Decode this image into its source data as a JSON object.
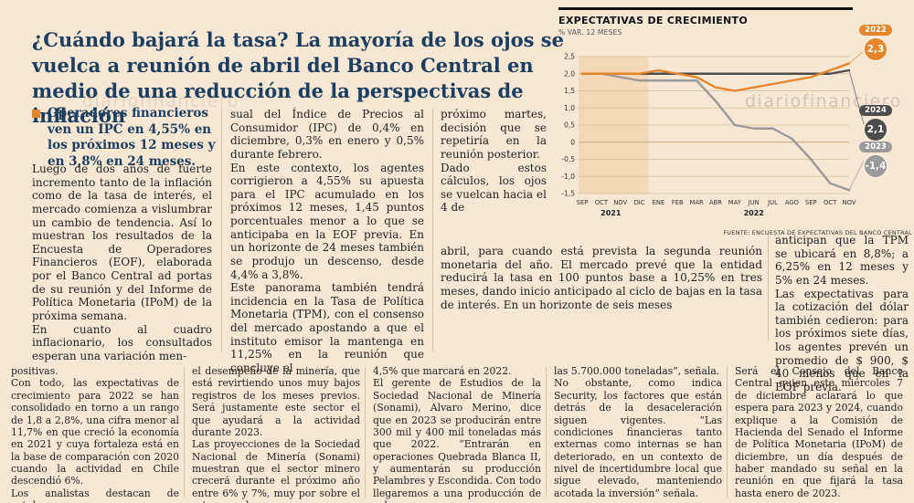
{
  "colors": {
    "background": "#f8e7d3",
    "accent_orange": "#e6862c",
    "headline_navy": "#1c3e60",
    "series_2022": "#e6862c",
    "series_2024": "#4d4d4d",
    "series_2023": "#9a9a9a"
  },
  "watermark": "diariofinanciero",
  "article": {
    "headline": "¿Cuándo bajará la tasa? La mayoría de los ojos se vuelca a reunión de abril del Banco Central en medio de una reducción de la perspectivas de inflación",
    "lead": "Operadores financieros ven un IPC en 4,55% en los próximos 12 meses y en 3,8% en 24 meses.",
    "col1": "Luego de dos años de fuerte incremento tanto de la inflación como de la tasa de interés, el mercado comienza a vislumbrar un cambio de tendencia. Así lo muestran los resultados de la Encuesta de Operadores Financieros (EOF), elaborada por el Banco Central ad portas de su reunión y del Informe de Política Monetaria (IPoM) de la próxima semana.\nEn cuanto al cuadro inflacionario, los consultados esperan una variación men-",
    "col2": "sual del Índice de Precios al Consumidor (IPC) de 0,4% en diciembre, 0,3% en enero y 0,5% durante febrero.\nEn este contexto, los agentes corrigieron a 4,55% su apuesta para el IPC acumulado en los próximos 12 meses, 1,45 puntos porcentuales menor a lo que se anticipaba en la EOF previa. En un horizonte de 24 meses también se produjo un descenso, desde 4,4% a 3,8%.\nEste panorama también tendrá incidencia en la Tasa de Política Monetaria (TPM), con el consenso del mercado apostando a que el instituto emisor la mantenga en 11,25% en la reunión que concluye el",
    "col3": "próximo martes, decisión que se repetiría en la reunión posterior.\nDado estos cálculos, los ojos se vuelcan hacia el 4 de",
    "col3_wide": "abril, para cuando está prevista la segunda reunión monetaria del año. El mercado prevé que la entidad reducirá la tasa en 100 puntos base a 10,25% en tres meses, dando inicio anticipado al ciclo de bajas en la tasa de interés. En un horizonte de seis meses",
    "col4": "anticipan que la TPM se ubicará en 8,8%; a 6,25% en 12 meses y 5% en 24 meses.\nLas expectativas para la cotización del dólar también cedieron: para los próximos siete días, los agentes prevén un promedio de $ 900, $ 40 menos que en la EOF previa.",
    "bottom1": "positivas.\nCon todo, las expectativas de crecimiento para 2022 se han consolidado en torno a un rango de 1,8 a 2,8%, una cifra menor al 11,7% en que creció la economía en 2021 y cuya fortaleza está en la base de comparación con 2020 cuando la actividad en Chile descendió 6%.\nLos analistas destacan de octubre",
    "bottom2": "el desempeño de la minería, que está revirtiendo unos muy bajos registros de los meses previos. Será justamente este sector el que ayudará a la actividad durante 2023.\nLas proyecciones de la Sociedad Nacional de Minería (Sonami) muestran que el sector minero crecerá durante el próximo año entre 6% y 7%, muy por sobre el retroceso de",
    "bottom3": "4,5% que marcará en 2022.\nEl gerente de Estudios de la Sociedad Nacional de Minería (Sonami), Alvaro Merino, dice que en 2023 se producirán entre 300 mil y 400 mil toneladas más que 2022. “Entrarán en operaciones Quebrada Blanca II, y aumentarán su producción Pelambres y Escondida. Con todo llegaremos a una producción de cobre cercana a",
    "bottom4": "las 5.700.000 toneladas”, señala.\nNo obstante, como indica Security, los factores que están detrás de la desaceleración siguen vigentes. “Las condiciones financieras tanto externas como internas se han deteriorado, en un contexto de nivel de incertidumbre local que sigue elevado, manteniendo acotada la inversión” señala.",
    "bottom5": "Será el Consejo del Banco Central quien este miércoles 7 de diciembre aclarará lo que espera para 2023 y 2024, cuando explique a la Comisión de Hacienda del Senado el Informe de Política Monetaria (IPoM) de diciembre, un día después de haber mandado su señal en la reunión en que fijará la tasa hasta enero de 2023."
  },
  "chart_data": {
    "type": "line",
    "title": "EXPECTATIVAS DE CRECIMIENTO",
    "subtitle": "% VAR. 12 MESES",
    "source": "FUENTE: ENCUESTA DE EXPECTATIVAS DEL BANCO CENTRAL",
    "x": [
      "SEP",
      "OCT",
      "NOV",
      "DIC",
      "ENE",
      "FEB",
      "MAR",
      "ABR",
      "MAY",
      "JUN",
      "JUL",
      "AGO",
      "SEP",
      "OCT",
      "NOV"
    ],
    "year_groups": [
      {
        "label": "2021",
        "from": 0,
        "to": 3
      },
      {
        "label": "2022",
        "from": 4,
        "to": 14
      }
    ],
    "ylim": [
      -1.5,
      2.5
    ],
    "yticks": [
      2.5,
      2.0,
      1.5,
      1.0,
      0.5,
      0,
      -0.5,
      -1.0,
      -1.5
    ],
    "ytick_labels": [
      "2,5",
      "2,0",
      "1,5",
      "1,0",
      "0,5",
      "0",
      "-0,5",
      "-1,0",
      "-1,5"
    ],
    "highlight_band": {
      "from": 0,
      "to": 3
    },
    "grid": true,
    "legend_position": "right-badges",
    "series": [
      {
        "name": "2022",
        "color": "#e6862c",
        "end_label": "2,3",
        "values": [
          2.0,
          2.0,
          2.0,
          2.0,
          2.1,
          2.0,
          1.9,
          1.6,
          1.5,
          1.6,
          1.7,
          1.8,
          1.9,
          2.1,
          2.3
        ]
      },
      {
        "name": "2024",
        "color": "#4d4d4d",
        "end_label": "2,1",
        "values": [
          2.0,
          2.0,
          2.0,
          2.0,
          2.0,
          2.0,
          2.0,
          2.0,
          2.0,
          2.0,
          2.0,
          2.0,
          2.0,
          2.0,
          2.1
        ]
      },
      {
        "name": "2023",
        "color": "#9a9a9a",
        "end_label": "-1,4",
        "values": [
          2.0,
          2.0,
          1.9,
          1.8,
          1.8,
          1.8,
          1.8,
          1.2,
          0.5,
          0.4,
          0.4,
          0.1,
          -0.5,
          -1.2,
          -1.4
        ]
      }
    ]
  }
}
